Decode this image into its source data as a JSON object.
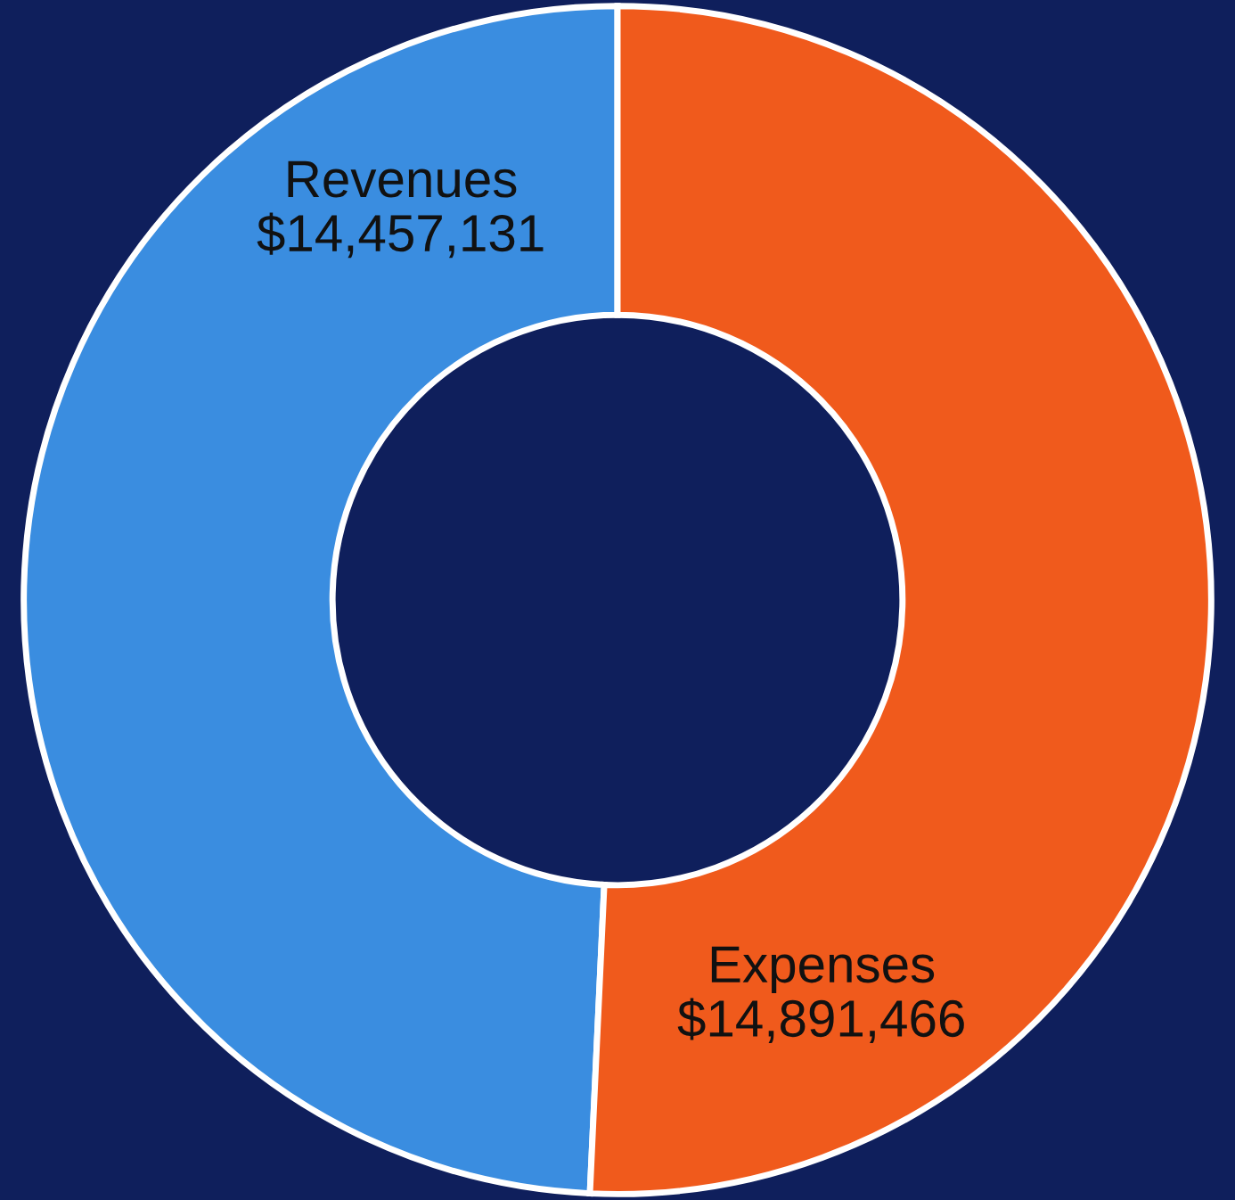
{
  "chart_data": {
    "type": "donut",
    "categories": [
      "Revenues",
      "Expenses"
    ],
    "values": [
      14457131,
      14891466
    ],
    "colors": [
      "#3a8de0",
      "#f05a1c"
    ],
    "value_labels": [
      "$14,457,131",
      "$14,891,466"
    ]
  }
}
